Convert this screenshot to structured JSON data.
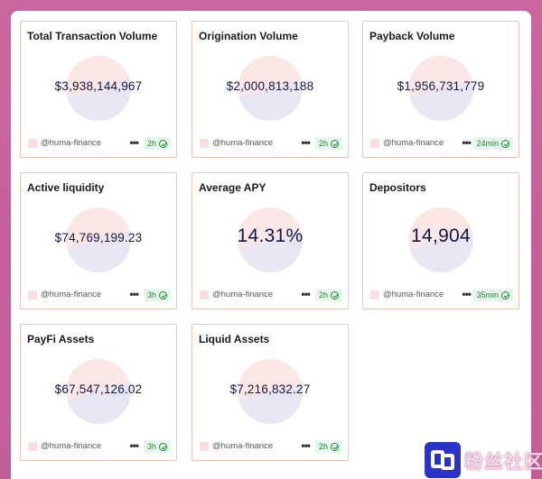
{
  "cards": [
    {
      "title": "Total Transaction Volume",
      "value": "$3,938,144,967",
      "handle": "@huma-finance",
      "more": "•••",
      "badge": "2h"
    },
    {
      "title": "Origination Volume",
      "value": "$2,000,813,188",
      "handle": "@huma-finance",
      "more": "•••",
      "badge": "2h"
    },
    {
      "title": "Payback Volume",
      "value": "$1,956,731,779",
      "handle": "@huma-finance",
      "more": "•••",
      "badge": "24min"
    },
    {
      "title": "Active liquidity",
      "value": "$74,769,199.23",
      "handle": "@huma-finance",
      "more": "•••",
      "badge": "3h"
    },
    {
      "title": "Average APY",
      "value": "14.31%",
      "handle": "@huma-finance",
      "more": "•••",
      "badge": "2h"
    },
    {
      "title": "Depositors",
      "value": "14,904",
      "handle": "@huma-finance",
      "more": "•••",
      "badge": "35min"
    },
    {
      "title": "PayFi Assets",
      "value": "$67,547,126.02",
      "handle": "@huma-finance",
      "more": "•••",
      "badge": "3h"
    },
    {
      "title": "Liquid Assets",
      "value": "$7,216,832.27",
      "handle": "@huma-finance",
      "more": "•••",
      "badge": "2h"
    }
  ],
  "watermark": {
    "text": "粉丝社区"
  },
  "colors": {
    "card_border": "#f3c3b2",
    "value_text": "#101847",
    "badge_bg": "#e6f6ea",
    "badge_text": "#1d8a3c",
    "background": "#c9669f"
  }
}
